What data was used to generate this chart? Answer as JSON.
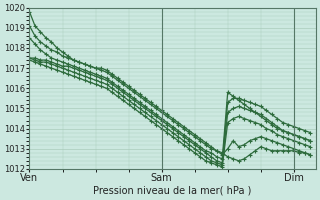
{
  "background_color": "#cce8e0",
  "plot_background": "#cce8e0",
  "grid_color": "#aaccbb",
  "line_color": "#2d6b3c",
  "marker_color": "#2d6b3c",
  "title": "Pression niveau de la mer( hPa )",
  "ylim": [
    1012,
    1020
  ],
  "yticks": [
    1012,
    1013,
    1014,
    1015,
    1016,
    1017,
    1018,
    1019,
    1020
  ],
  "xtick_labels": [
    "Ven",
    "Sam",
    "Dim"
  ],
  "xtick_positions": [
    0,
    24,
    48
  ],
  "xmax": 52,
  "series": [
    [
      1019.8,
      1019.1,
      1018.8,
      1018.5,
      1018.3,
      1018.0,
      1017.8,
      1017.6,
      1017.4,
      1017.3,
      1017.2,
      1017.1,
      1017.0,
      1017.0,
      1016.9,
      1016.7,
      1016.5,
      1016.3,
      1016.1,
      1015.9,
      1015.7,
      1015.5,
      1015.3,
      1015.1,
      1014.9,
      1014.7,
      1014.5,
      1014.3,
      1014.1,
      1013.9,
      1013.7,
      1013.5,
      1013.3,
      1013.1,
      1012.9,
      1012.7,
      1013.0,
      1013.4,
      1013.1,
      1013.2,
      1013.4,
      1013.5,
      1013.6,
      1013.5,
      1013.4,
      1013.3,
      1013.2,
      1013.1,
      1013.0,
      1012.9,
      1012.8,
      1012.7
    ],
    [
      1019.1,
      1018.6,
      1018.3,
      1018.1,
      1017.9,
      1017.8,
      1017.6,
      1017.5,
      1017.4,
      1017.3,
      1017.2,
      1017.1,
      1017.0,
      1016.9,
      1016.8,
      1016.6,
      1016.4,
      1016.2,
      1016.0,
      1015.8,
      1015.6,
      1015.4,
      1015.2,
      1015.0,
      1014.8,
      1014.6,
      1014.4,
      1014.2,
      1014.0,
      1013.8,
      1013.6,
      1013.4,
      1013.2,
      1013.0,
      1012.9,
      1012.8,
      1012.6,
      1012.5,
      1012.4,
      1012.5,
      1012.7,
      1012.9,
      1013.1,
      1013.0,
      1012.9,
      1012.9,
      1012.9,
      1012.9,
      1012.9,
      1012.8,
      1012.8,
      1012.7
    ],
    [
      1018.5,
      1018.2,
      1017.9,
      1017.7,
      1017.5,
      1017.4,
      1017.3,
      1017.2,
      1017.1,
      1017.0,
      1016.9,
      1016.8,
      1016.7,
      1016.6,
      1016.5,
      1016.3,
      1016.1,
      1015.9,
      1015.7,
      1015.5,
      1015.3,
      1015.1,
      1014.9,
      1014.7,
      1014.5,
      1014.3,
      1014.1,
      1013.9,
      1013.7,
      1013.5,
      1013.3,
      1013.1,
      1012.9,
      1012.8,
      1012.6,
      1012.5,
      1015.8,
      1015.6,
      1015.4,
      1015.2,
      1015.0,
      1014.8,
      1014.6,
      1014.4,
      1014.2,
      1014.0,
      1013.9,
      1013.8,
      1013.7,
      1013.6,
      1013.5,
      1013.4
    ],
    [
      1017.5,
      1017.5,
      1017.4,
      1017.4,
      1017.3,
      1017.2,
      1017.1,
      1017.1,
      1017.0,
      1016.9,
      1016.8,
      1016.7,
      1016.6,
      1016.5,
      1016.4,
      1016.2,
      1016.0,
      1015.8,
      1015.6,
      1015.4,
      1015.2,
      1015.0,
      1014.8,
      1014.6,
      1014.4,
      1014.2,
      1014.0,
      1013.8,
      1013.6,
      1013.4,
      1013.2,
      1013.0,
      1012.8,
      1012.6,
      1012.4,
      1012.3,
      1015.3,
      1015.5,
      1015.5,
      1015.4,
      1015.3,
      1015.2,
      1015.1,
      1014.9,
      1014.7,
      1014.5,
      1014.3,
      1014.2,
      1014.1,
      1014.0,
      1013.9,
      1013.8
    ],
    [
      1017.5,
      1017.4,
      1017.3,
      1017.3,
      1017.2,
      1017.1,
      1017.0,
      1016.9,
      1016.8,
      1016.7,
      1016.6,
      1016.5,
      1016.4,
      1016.3,
      1016.2,
      1016.0,
      1015.8,
      1015.6,
      1015.4,
      1015.2,
      1015.0,
      1014.8,
      1014.6,
      1014.4,
      1014.2,
      1014.0,
      1013.8,
      1013.6,
      1013.4,
      1013.2,
      1013.0,
      1012.8,
      1012.6,
      1012.4,
      1012.3,
      1012.2,
      1014.8,
      1015.0,
      1015.1,
      1015.0,
      1014.9,
      1014.8,
      1014.7,
      1014.5,
      1014.3,
      1014.1,
      1013.9,
      1013.8,
      1013.7,
      1013.6,
      1013.5,
      1013.4
    ],
    [
      1017.4,
      1017.3,
      1017.2,
      1017.1,
      1017.0,
      1016.9,
      1016.8,
      1016.7,
      1016.6,
      1016.5,
      1016.4,
      1016.3,
      1016.2,
      1016.1,
      1016.0,
      1015.8,
      1015.6,
      1015.4,
      1015.2,
      1015.0,
      1014.8,
      1014.6,
      1014.4,
      1014.2,
      1014.0,
      1013.8,
      1013.6,
      1013.4,
      1013.2,
      1013.0,
      1012.8,
      1012.6,
      1012.4,
      1012.3,
      1012.2,
      1012.1,
      1014.3,
      1014.5,
      1014.6,
      1014.5,
      1014.4,
      1014.3,
      1014.2,
      1014.0,
      1013.9,
      1013.7,
      1013.6,
      1013.5,
      1013.4,
      1013.3,
      1013.2,
      1013.1
    ]
  ],
  "vlines": [
    24,
    48
  ],
  "marker": "+",
  "markersize": 3,
  "linewidth": 0.9
}
